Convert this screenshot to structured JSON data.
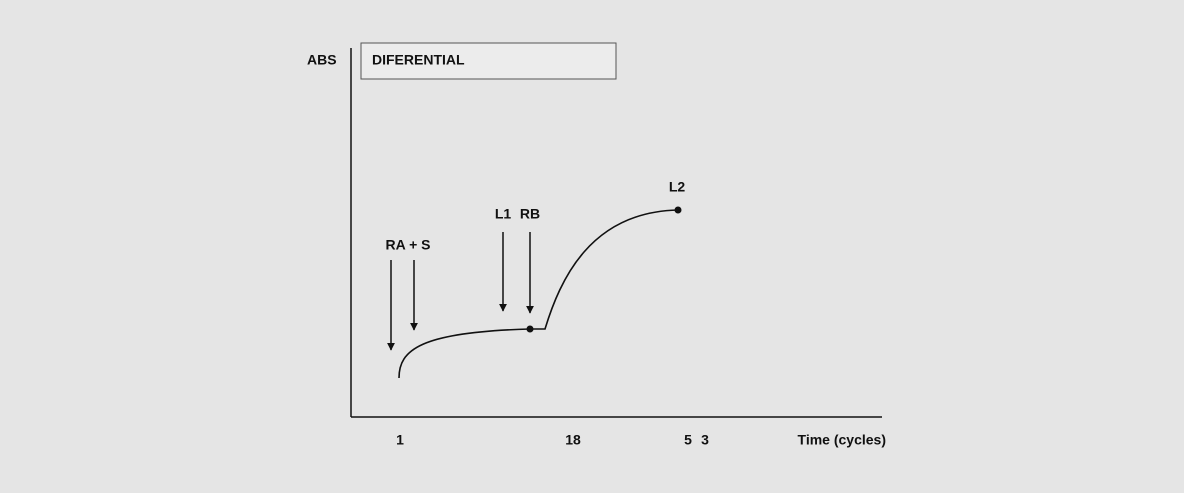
{
  "diagram": {
    "y_axis_label": "ABS",
    "box_title": "DIFERENTIAL",
    "annotations": [
      "RA + S",
      "L1",
      "RB",
      "L2"
    ],
    "x_labels": [
      "1",
      "18",
      "5",
      "3"
    ],
    "x_axis_label": "Time (cycles)"
  }
}
